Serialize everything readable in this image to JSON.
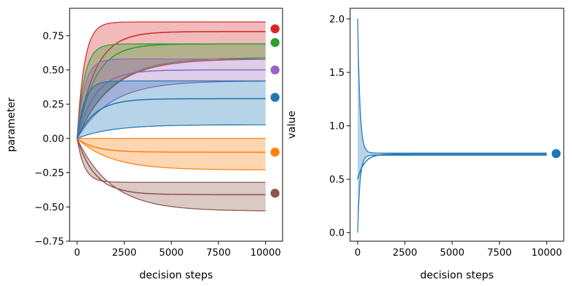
{
  "chart_data": [
    {
      "type": "line",
      "xlabel": "decision steps",
      "ylabel": "parameter",
      "xlim": [
        -400,
        10900
      ],
      "ylim": [
        -0.75,
        0.95
      ],
      "xticks": [
        0,
        2500,
        5000,
        7500,
        10000
      ],
      "xtick_labels": [
        "0",
        "2500",
        "5000",
        "7500",
        "10000"
      ],
      "yticks": [
        -0.75,
        -0.5,
        -0.25,
        0.0,
        0.25,
        0.5,
        0.75
      ],
      "ytick_labels": [
        "−0.75",
        "−0.50",
        "−0.25",
        "0.00",
        "0.25",
        "0.50",
        "0.75"
      ],
      "grid": false,
      "series": [
        {
          "color": "#d62728",
          "target": 0.8,
          "band_min_final": 0.58,
          "mean_final": 0.78,
          "band_max_final": 0.85
        },
        {
          "color": "#2ca02c",
          "target": 0.7,
          "band_min_final": 0.59,
          "mean_final": 0.69,
          "band_max_final": 0.69
        },
        {
          "color": "#9467bd",
          "target": 0.5,
          "band_min_final": 0.42,
          "mean_final": 0.5,
          "band_max_final": 0.58
        },
        {
          "color": "#1f77b4",
          "target": 0.3,
          "band_min_final": 0.1,
          "mean_final": 0.29,
          "band_max_final": 0.42
        },
        {
          "color": "#ff7f0e",
          "target": -0.1,
          "band_min_final": -0.23,
          "mean_final": -0.1,
          "band_max_final": 0.0
        },
        {
          "color": "#8c564b",
          "target": -0.4,
          "band_min_final": -0.53,
          "mean_final": -0.41,
          "band_max_final": -0.32
        }
      ],
      "target_markers_x": 10500
    },
    {
      "type": "line",
      "xlabel": "decision steps",
      "ylabel": "value",
      "xlim": [
        -400,
        10900
      ],
      "ylim": [
        -0.08,
        2.1
      ],
      "xticks": [
        0,
        2500,
        5000,
        7500,
        10000
      ],
      "xtick_labels": [
        "0",
        "2500",
        "5000",
        "7500",
        "10000"
      ],
      "yticks": [
        0.0,
        0.5,
        1.0,
        1.5,
        2.0
      ],
      "ytick_labels": [
        "0.0",
        "0.5",
        "1.0",
        "1.5",
        "2.0"
      ],
      "grid": false,
      "series": [
        {
          "color": "#1f77b4",
          "target": 0.74,
          "band_min_start": 0.0,
          "band_max_start": 2.0,
          "mean_final": 0.735,
          "band_min_final": 0.725,
          "band_max_final": 0.745
        }
      ],
      "target_markers_x": 10500
    }
  ]
}
